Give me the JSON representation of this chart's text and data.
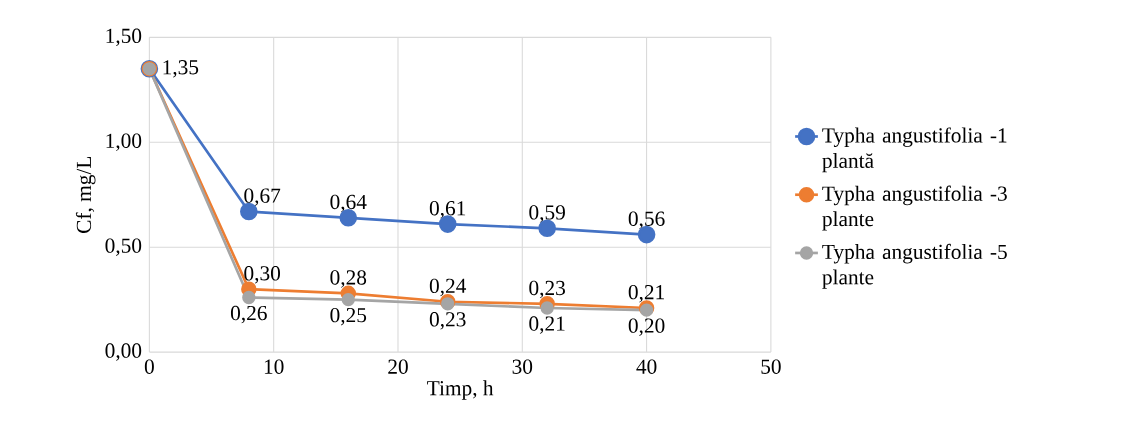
{
  "chart_data": {
    "type": "line",
    "xlabel": "Timp, h",
    "ylabel": "Cf, mg/L",
    "x": [
      0,
      8,
      16,
      24,
      32,
      40
    ],
    "series": [
      {
        "name": "Typha angustifolia -1 plantă",
        "color": "#4472c4",
        "values": [
          1.35,
          0.67,
          0.64,
          0.61,
          0.59,
          0.56
        ],
        "value_labels": [
          "1,35",
          "0,67",
          "0,64",
          "0,61",
          "0,59",
          "0,56"
        ]
      },
      {
        "name": "Typha angustifolia -3 plante",
        "color": "#ed7d31",
        "values": [
          1.35,
          0.3,
          0.28,
          0.24,
          0.23,
          0.21
        ],
        "value_labels": [
          null,
          "0,30",
          "0,28",
          "0,24",
          "0,23",
          "0,21"
        ]
      },
      {
        "name": "Typha angustifolia -5 plante",
        "color": "#a5a5a5",
        "values": [
          1.35,
          0.26,
          0.25,
          0.23,
          0.21,
          0.2
        ],
        "value_labels": [
          null,
          "0,26",
          "0,25",
          "0,23",
          "0,21",
          "0,20"
        ]
      }
    ],
    "xlim": [
      0,
      50
    ],
    "xticks": [
      0,
      10,
      20,
      30,
      40,
      50
    ],
    "ylim": [
      0,
      1.5
    ],
    "yticks": [
      {
        "value": 0,
        "label": "0,00"
      },
      {
        "value": 0.5,
        "label": "0,50"
      },
      {
        "value": 1.0,
        "label": "1,00"
      },
      {
        "value": 1.5,
        "label": "1,50"
      }
    ],
    "grid": true,
    "legend": "right",
    "marker": "circle",
    "line_style": "solid"
  }
}
